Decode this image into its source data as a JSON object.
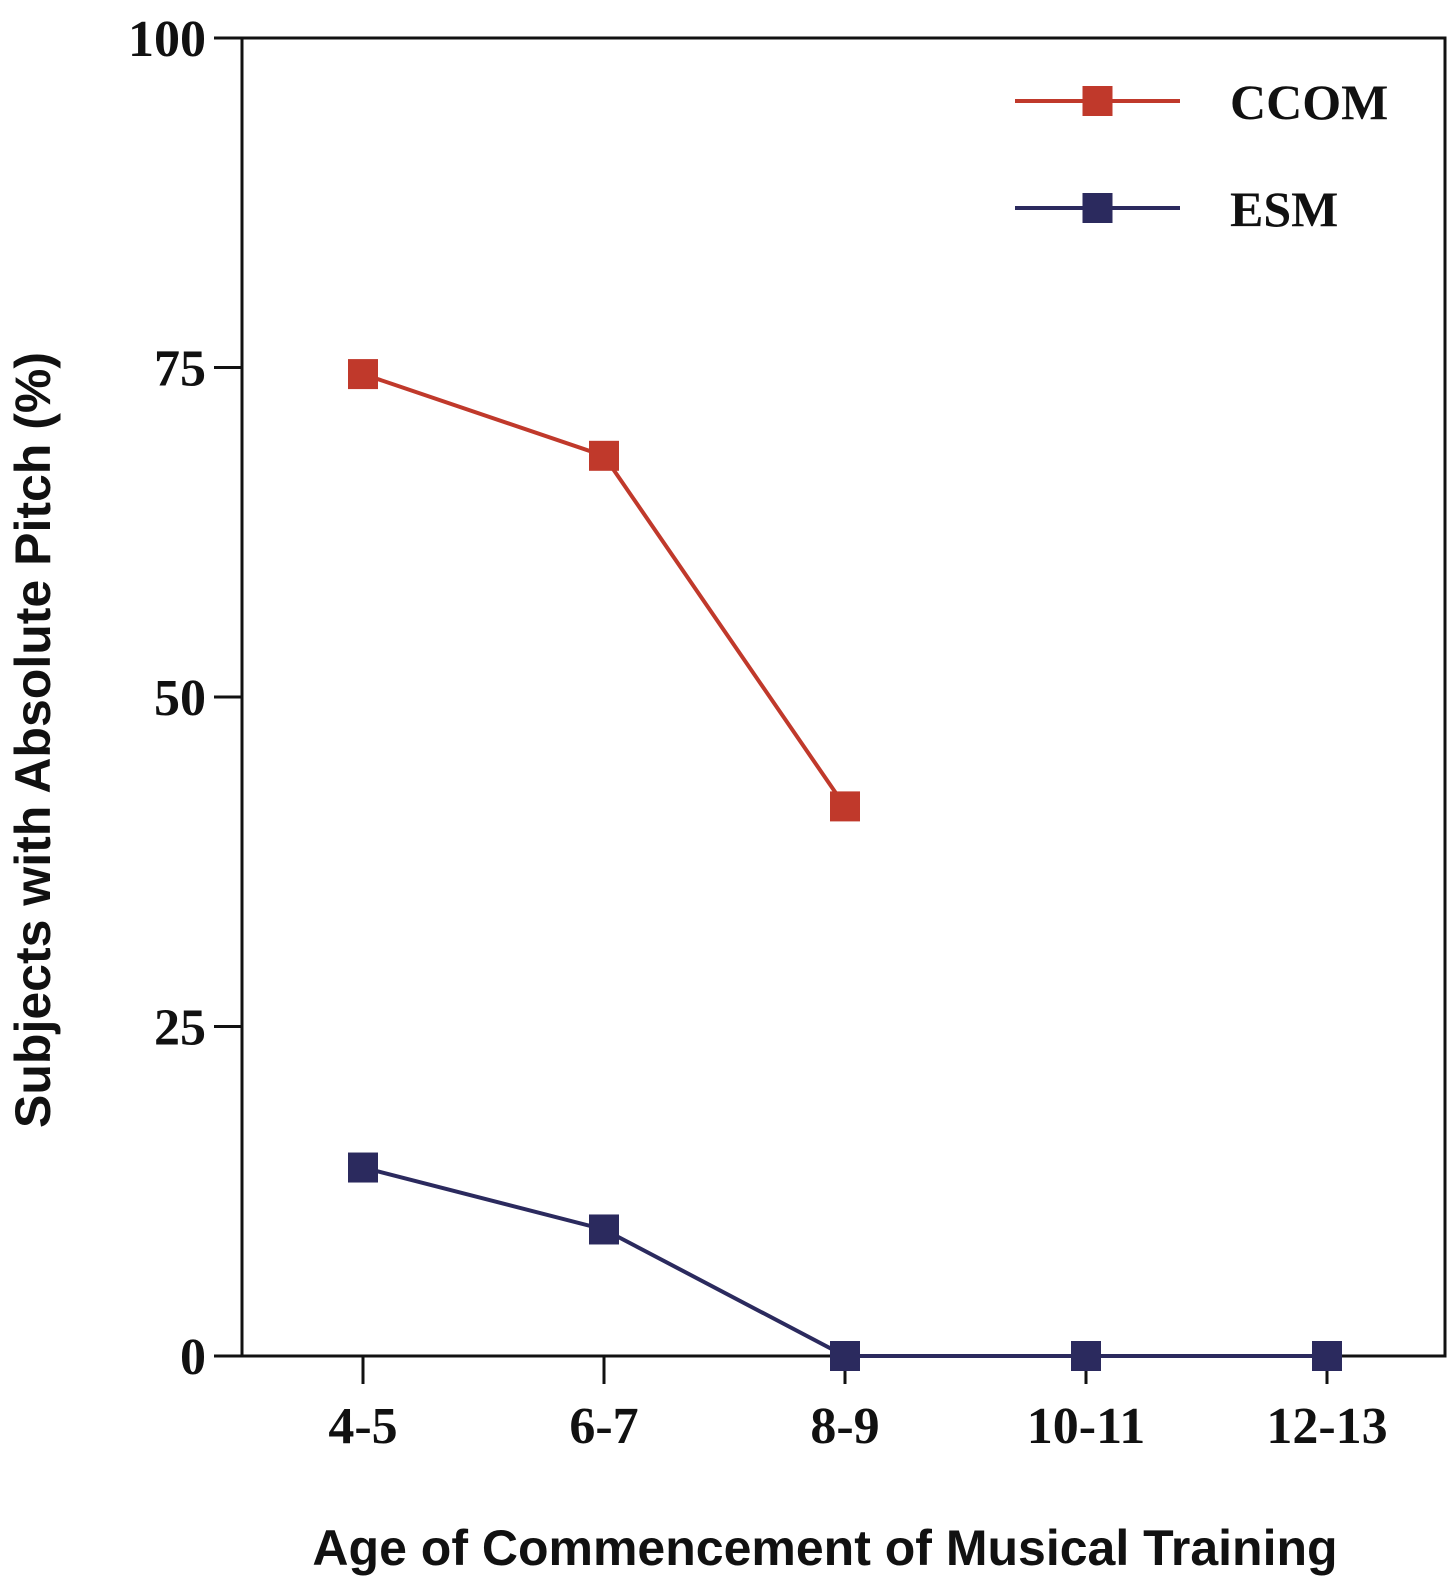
{
  "chart_data": {
    "type": "line",
    "title": "",
    "xlabel": "Age of Commencement of Musical Training",
    "ylabel": "Subjects with Absolute Pitch (%)",
    "categories": [
      "4-5",
      "6-7",
      "8-9",
      "10-11",
      "12-13"
    ],
    "ylim": [
      0,
      100
    ],
    "yticks": [
      0,
      25,
      50,
      75,
      100
    ],
    "ytick_labels": [
      "0",
      "25",
      "50",
      "75",
      "100"
    ],
    "grid": false,
    "legend_position": "top-right",
    "series": [
      {
        "name": "CCOM",
        "color": "#c0392b",
        "marker": "square",
        "values": [
          74.5,
          68.3,
          41.7,
          null,
          null
        ]
      },
      {
        "name": "ESM",
        "color": "#2b2a5e",
        "marker": "square",
        "values": [
          14.3,
          9.6,
          0,
          0,
          0
        ]
      }
    ]
  }
}
